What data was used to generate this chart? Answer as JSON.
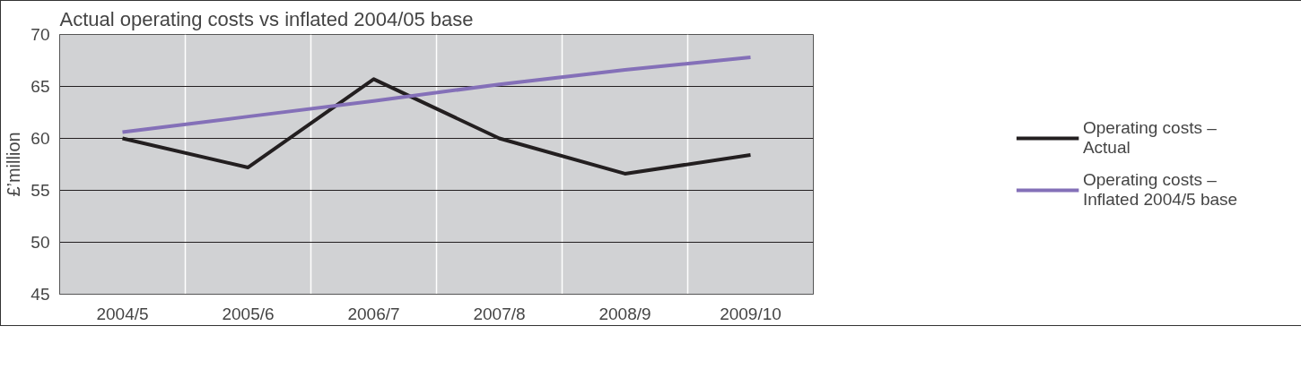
{
  "chart_data": {
    "type": "line",
    "title": "Actual operating costs vs inflated 2004/05 base",
    "ylabel": "£’million",
    "categories": [
      "2004/5",
      "2005/6",
      "2006/7",
      "2007/8",
      "2008/9",
      "2009/10"
    ],
    "series": [
      {
        "name": "Operating costs – Actual",
        "color": "#231f20",
        "values": [
          60.0,
          57.2,
          65.7,
          60.0,
          56.6,
          58.4
        ]
      },
      {
        "name": "Operating costs – Inflated 2004/5 base",
        "color": "#8470b8",
        "values": [
          60.6,
          62.1,
          63.6,
          65.2,
          66.6,
          67.8
        ]
      }
    ],
    "ylim": [
      45,
      70
    ],
    "yticks": [
      45,
      50,
      55,
      60,
      65,
      70
    ],
    "grid": true,
    "legend": "right",
    "marker": "none",
    "line_style": "solid"
  }
}
